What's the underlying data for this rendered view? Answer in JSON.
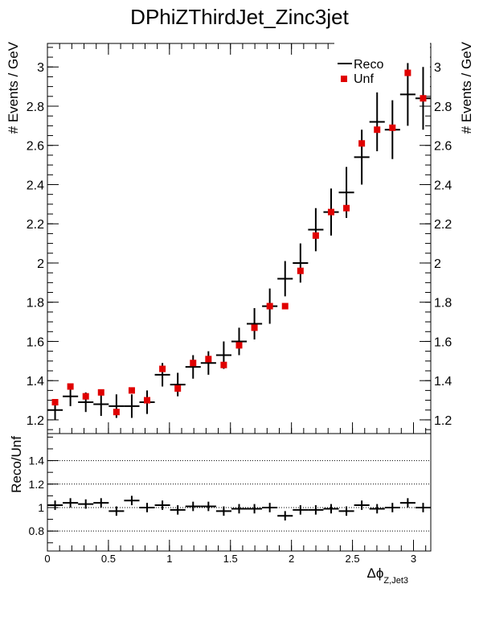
{
  "title": "DPhiZThirdJet_Zinc3jet",
  "chart_data": {
    "type": "scatter",
    "title": "DPhiZThirdJet_Zinc3jet",
    "xlabel_main": "Δϕ",
    "xlabel_sub": "Z,Jet3",
    "ylabel_top": "# Events / GeV",
    "ylabel_right": "# Events / GeV",
    "ylabel_bottom": "Reco/Unf",
    "xlim": [
      0,
      3.1416
    ],
    "ylim_top": [
      1.13,
      3.12
    ],
    "ylim_bottom": [
      0.63,
      1.63
    ],
    "xticks": [
      "0",
      "0.5",
      "1",
      "1.5",
      "2",
      "2.5",
      "3"
    ],
    "yticks_top": [
      "1.2",
      "1.4",
      "1.6",
      "1.8",
      "2",
      "2.2",
      "2.4",
      "2.6",
      "2.8",
      "3"
    ],
    "yticks_bottom": [
      "0.8",
      "1",
      "1.2",
      "1.4"
    ],
    "bottom_gridlines": [
      0.8,
      1.0,
      1.2,
      1.4
    ],
    "bin_width": 0.1257,
    "x": [
      0.0628,
      0.1885,
      0.3142,
      0.4398,
      0.5655,
      0.6912,
      0.8168,
      0.9425,
      1.0681,
      1.1938,
      1.3195,
      1.4451,
      1.5708,
      1.6965,
      1.8221,
      1.9478,
      2.0735,
      2.1991,
      2.3248,
      2.4504,
      2.5761,
      2.7018,
      2.8274,
      2.9531,
      3.0788
    ],
    "series": [
      {
        "name": "Reco",
        "color": "#000000",
        "marker": "cross",
        "values": [
          1.25,
          1.32,
          1.29,
          1.28,
          1.27,
          1.27,
          1.29,
          1.43,
          1.38,
          1.47,
          1.49,
          1.53,
          1.6,
          1.69,
          1.78,
          1.92,
          2.0,
          2.17,
          2.26,
          2.36,
          2.54,
          2.72,
          2.68,
          2.86,
          2.84
        ],
        "errors": [
          0.05,
          0.05,
          0.05,
          0.06,
          0.06,
          0.06,
          0.06,
          0.06,
          0.06,
          0.06,
          0.06,
          0.07,
          0.07,
          0.08,
          0.09,
          0.09,
          0.1,
          0.11,
          0.12,
          0.13,
          0.14,
          0.15,
          0.15,
          0.16,
          0.16
        ]
      },
      {
        "name": "Unf",
        "color": "#e00000",
        "marker": "square",
        "values": [
          1.29,
          1.37,
          1.32,
          1.34,
          1.24,
          1.35,
          1.3,
          1.46,
          1.36,
          1.49,
          1.51,
          1.48,
          1.58,
          1.67,
          1.78,
          1.78,
          1.96,
          2.14,
          2.26,
          2.28,
          2.61,
          2.68,
          2.69,
          2.97,
          2.84
        ]
      }
    ],
    "ratio": {
      "values": [
        1.02,
        1.04,
        1.03,
        1.04,
        0.97,
        1.06,
        1.0,
        1.02,
        0.98,
        1.01,
        1.01,
        0.97,
        0.99,
        0.99,
        1.0,
        0.93,
        0.98,
        0.98,
        0.99,
        0.97,
        1.02,
        0.99,
        1.0,
        1.04,
        1.0
      ],
      "errors": [
        0.04,
        0.04,
        0.04,
        0.04,
        0.04,
        0.04,
        0.04,
        0.04,
        0.04,
        0.04,
        0.04,
        0.04,
        0.04,
        0.04,
        0.04,
        0.04,
        0.04,
        0.04,
        0.04,
        0.04,
        0.04,
        0.04,
        0.04,
        0.04,
        0.04
      ]
    },
    "legend": [
      "Reco",
      "Unf"
    ],
    "legend_position": "top-right"
  }
}
